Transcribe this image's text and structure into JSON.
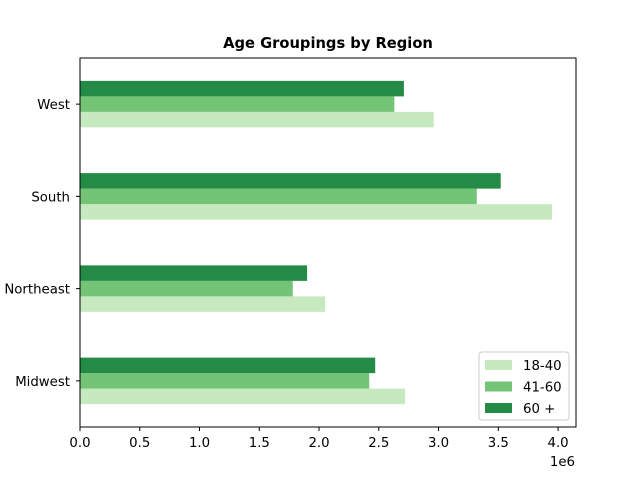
{
  "chart_data": {
    "type": "bar",
    "orientation": "horizontal",
    "title": "Age Groupings by Region",
    "xlabel": "",
    "ylabel": "",
    "categories": [
      "Midwest",
      "Northeast",
      "South",
      "West"
    ],
    "series": [
      {
        "name": "18-40",
        "color": "#c7e9c0",
        "values": [
          2720000,
          2050000,
          3950000,
          2960000
        ]
      },
      {
        "name": "41-60",
        "color": "#74c476",
        "values": [
          2420000,
          1780000,
          3320000,
          2630000
        ]
      },
      {
        "name": "60 +",
        "color": "#238b45",
        "values": [
          2470000,
          1900000,
          3520000,
          2710000
        ]
      }
    ],
    "xlim": [
      0,
      4150000
    ],
    "xticks": [
      0,
      500000,
      1000000,
      1500000,
      2000000,
      2500000,
      3000000,
      3500000,
      4000000
    ],
    "xtick_labels": [
      "0.0",
      "0.5",
      "1.0",
      "1.5",
      "2.0",
      "2.5",
      "3.0",
      "3.5",
      "4.0"
    ],
    "x_offset_label": "1e6",
    "grid": false,
    "legend": {
      "placement": "lower-right",
      "entries": [
        "18-40",
        "41-60",
        "60 +"
      ]
    }
  }
}
